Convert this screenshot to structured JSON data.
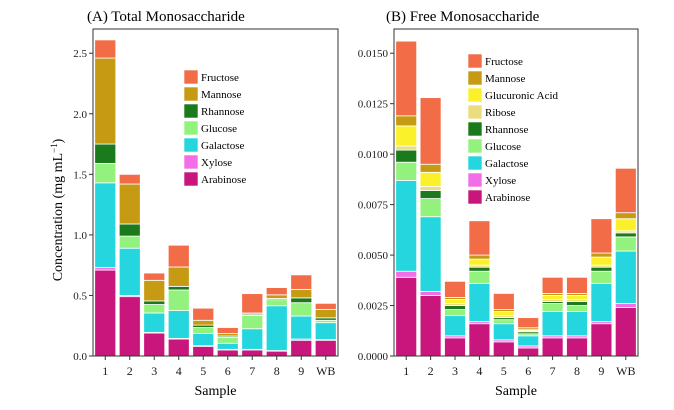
{
  "ylabel": "Concentration (mg mL",
  "ylabel_sup": "−1",
  "ylabel_close": ")",
  "chart_data": [
    {
      "type": "bar",
      "stacked": true,
      "title": "(A)  Total Monosaccharide",
      "xlabel": "Sample",
      "categories": [
        "1",
        "2",
        "3",
        "4",
        "5",
        "6",
        "7",
        "8",
        "9",
        "WB"
      ],
      "ylim": [
        0,
        2.7
      ],
      "yticks": [
        0.0,
        0.5,
        1.0,
        1.5,
        2.0,
        2.5
      ],
      "ytick_labels": [
        "0.0",
        "0.5",
        "1.0",
        "1.5",
        "2.0",
        "2.5"
      ],
      "series": [
        {
          "name": "Arabinose",
          "color": "#c8167c",
          "values": [
            0.71,
            0.49,
            0.19,
            0.14,
            0.08,
            0.05,
            0.05,
            0.04,
            0.13,
            0.13
          ]
        },
        {
          "name": "Xylose",
          "color": "#f26ee6",
          "values": [
            0.02,
            0.01,
            0.005,
            0.005,
            0.005,
            0.005,
            0.005,
            0.005,
            0.01,
            0.005
          ]
        },
        {
          "name": "Galactose",
          "color": "#26d6df",
          "values": [
            0.7,
            0.39,
            0.16,
            0.23,
            0.1,
            0.05,
            0.17,
            0.37,
            0.19,
            0.14
          ]
        },
        {
          "name": "Glucose",
          "color": "#93f27d",
          "values": [
            0.16,
            0.1,
            0.07,
            0.17,
            0.05,
            0.05,
            0.11,
            0.05,
            0.11,
            0.02
          ]
        },
        {
          "name": "Rhannose",
          "color": "#1b7a1c",
          "values": [
            0.16,
            0.1,
            0.03,
            0.03,
            0.02,
            0.01,
            0.01,
            0.01,
            0.04,
            0.02
          ]
        },
        {
          "name": "Mannose",
          "color": "#c79a14",
          "values": [
            0.71,
            0.33,
            0.17,
            0.16,
            0.04,
            0.02,
            0.01,
            0.03,
            0.07,
            0.07
          ]
        },
        {
          "name": "Fructose",
          "color": "#f26c48",
          "values": [
            0.15,
            0.08,
            0.06,
            0.18,
            0.1,
            0.05,
            0.16,
            0.06,
            0.12,
            0.05
          ]
        }
      ],
      "legend": [
        "Fructose",
        "Mannose",
        "Rhannose",
        "Glucose",
        "Galactose",
        "Xylose",
        "Arabinose"
      ],
      "legend_position": "top-right"
    },
    {
      "type": "bar",
      "stacked": true,
      "title": "(B)  Free Monosaccharide",
      "xlabel": "Sample",
      "categories": [
        "1",
        "2",
        "3",
        "4",
        "5",
        "6",
        "7",
        "8",
        "9",
        "WB"
      ],
      "ylim": [
        0,
        0.0162
      ],
      "yticks": [
        0.0,
        0.0025,
        0.005,
        0.0075,
        0.01,
        0.0125,
        0.015
      ],
      "ytick_labels": [
        "0.0000",
        "0.0025",
        "0.0050",
        "0.0075",
        "0.0100",
        "0.0125",
        "0.0150"
      ],
      "series": [
        {
          "name": "Arabinose",
          "color": "#c8167c",
          "values": [
            0.0039,
            0.003,
            0.0009,
            0.0016,
            0.0007,
            0.0004,
            0.0009,
            0.0009,
            0.0016,
            0.0024
          ]
        },
        {
          "name": "Xylose",
          "color": "#f26ee6",
          "values": [
            0.0003,
            0.0002,
            0.0001,
            0.0001,
            0.0001,
            0.0001,
            0.0001,
            0.0001,
            0.0001,
            0.0002
          ]
        },
        {
          "name": "Galactose",
          "color": "#26d6df",
          "values": [
            0.0045,
            0.0037,
            0.001,
            0.0019,
            0.0008,
            0.0005,
            0.0012,
            0.0012,
            0.0019,
            0.0026
          ]
        },
        {
          "name": "Glucose",
          "color": "#93f27d",
          "values": [
            0.0009,
            0.0009,
            0.0003,
            0.0006,
            0.0002,
            0.0001,
            0.0004,
            0.0003,
            0.0006,
            0.0007
          ]
        },
        {
          "name": "Rhannose",
          "color": "#1b7a1c",
          "values": [
            0.0006,
            0.0004,
            0.0002,
            0.0002,
            0.0001,
            0.0001,
            0.0001,
            0.0002,
            0.0002,
            0.0002
          ]
        },
        {
          "name": "Ribose",
          "color": "#ecdc80",
          "values": [
            0.0002,
            0.0002,
            0.0001,
            0.0001,
            0.0001,
            5e-05,
            0.0001,
            0.0001,
            0.0001,
            0.0001
          ]
        },
        {
          "name": "Glucuronic Acid",
          "color": "#fbf12a",
          "values": [
            0.001,
            0.0007,
            0.0002,
            0.0003,
            0.0002,
            5e-05,
            0.0002,
            0.0002,
            0.0004,
            0.0006
          ]
        },
        {
          "name": "Mannose",
          "color": "#c79a14",
          "values": [
            0.0005,
            0.0004,
            0.0001,
            0.0002,
            0.0001,
            0.0001,
            0.0001,
            0.0001,
            0.0002,
            0.0003
          ]
        },
        {
          "name": "Fructose",
          "color": "#f26c48",
          "values": [
            0.0037,
            0.0033,
            0.0008,
            0.0017,
            0.0008,
            0.0005,
            0.0008,
            0.0008,
            0.0017,
            0.0022
          ]
        }
      ],
      "legend": [
        "Fructose",
        "Mannose",
        "Glucuronic Acid",
        "Ribose",
        "Rhannose",
        "Glucose",
        "Galactose",
        "Xylose",
        "Arabinose"
      ],
      "legend_position": "top-right"
    }
  ]
}
